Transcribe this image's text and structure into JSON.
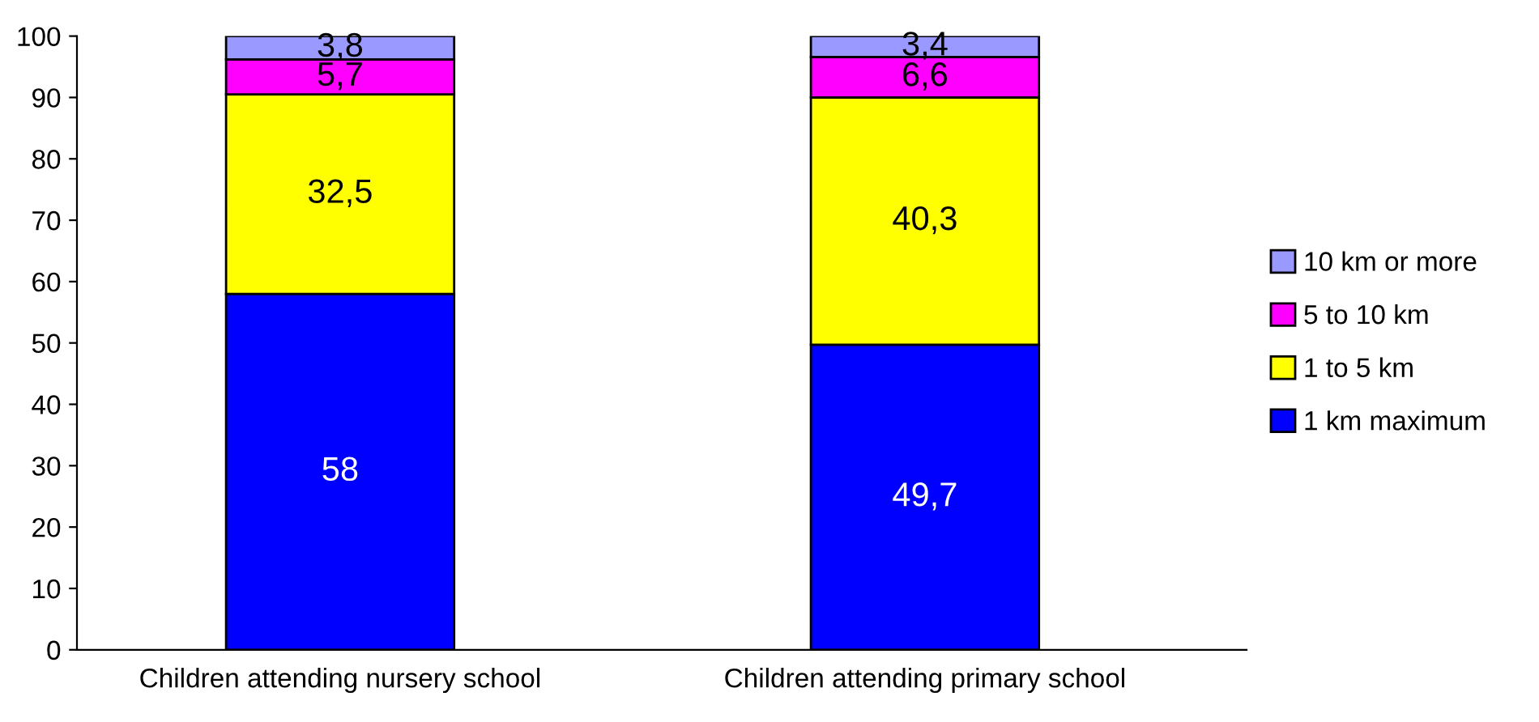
{
  "chart_data": {
    "type": "bar",
    "stacked": true,
    "categories": [
      "Children attending nursery school",
      "Children attending primary school"
    ],
    "series": [
      {
        "name": "1 km maximum",
        "color": "#0000ff",
        "values": [
          58,
          49.7
        ],
        "value_labels": [
          "58",
          "49,7"
        ]
      },
      {
        "name": "1 to 5 km",
        "color": "#ffff00",
        "values": [
          32.5,
          40.3
        ],
        "value_labels": [
          "32,5",
          "40,3"
        ]
      },
      {
        "name": "5 to 10 km",
        "color": "#ff00ff",
        "values": [
          5.7,
          6.6
        ],
        "value_labels": [
          "5,7",
          "6,6"
        ]
      },
      {
        "name": "10 km or more",
        "color": "#9999ff",
        "values": [
          3.8,
          3.4
        ],
        "value_labels": [
          "3,8",
          "3,4"
        ]
      }
    ],
    "ylim": [
      0,
      100
    ],
    "yticks": [
      0,
      10,
      20,
      30,
      40,
      50,
      60,
      70,
      80,
      90,
      100
    ],
    "grid": false,
    "legend": "right"
  }
}
